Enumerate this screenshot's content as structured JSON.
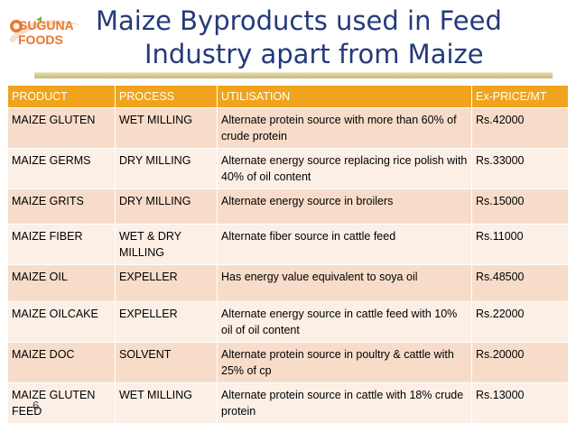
{
  "logo": {
    "line1": "SUGUNA",
    "line2": "FOODS",
    "accent_color": "#e8772e"
  },
  "title": {
    "line1": "Maize Byproducts used in Feed",
    "line2": "Industry apart from Maize",
    "color": "#243a7a"
  },
  "table": {
    "header_color": "#f0a31d",
    "headers": [
      "PRODUCT",
      "PROCESS",
      "UTILISATION",
      "Ex-PRICE/MT"
    ],
    "rows": [
      {
        "product": "MAIZE GLUTEN",
        "process": "WET MILLING",
        "utilisation": "Alternate protein source with more than 60% of crude protein",
        "price": "Rs.42000"
      },
      {
        "product": "MAIZE GERMS",
        "process": "DRY MILLING",
        "utilisation": "Alternate energy source replacing rice polish with 40% of oil content",
        "price": "Rs.33000"
      },
      {
        "product": "MAIZE GRITS",
        "process": "DRY MILLING",
        "utilisation": "Alternate energy source in broilers",
        "price": "Rs.15000"
      },
      {
        "product": "MAIZE FIBER",
        "process": "WET & DRY MILLING",
        "utilisation": "Alternate fiber source in cattle feed",
        "price": "Rs.11000"
      },
      {
        "product": "MAIZE OIL",
        "process": "EXPELLER",
        "utilisation": "Has energy value equivalent to soya oil",
        "price": "Rs.48500"
      },
      {
        "product": "MAIZE OILCAKE",
        "process": "EXPELLER",
        "utilisation": "Alternate energy source in cattle feed with 10% oil of oil content",
        "price": "Rs.22000"
      },
      {
        "product": "MAIZE DOC",
        "process": "SOLVENT",
        "utilisation": "Alternate protein source in poultry & cattle with 25% of cp",
        "price": "Rs.20000"
      },
      {
        "product": "MAIZE GLUTEN FEED",
        "process": "WET MILLING",
        "utilisation": "Alternate protein source in cattle with 18% crude protein",
        "price": "Rs.13000"
      }
    ]
  },
  "slide_number": "6"
}
